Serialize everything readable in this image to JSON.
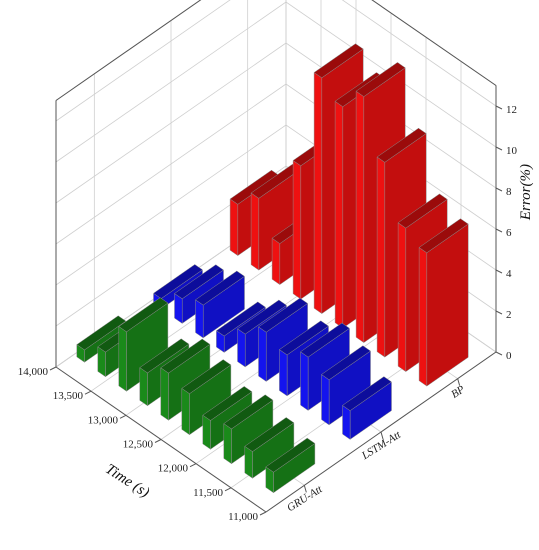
{
  "chart_data": {
    "type": "bar3d",
    "title": "",
    "xlabel": "Time (s)",
    "ylabel": "",
    "zlabel": "Error(%)",
    "time_ticks": [
      "14,000",
      "13,500",
      "13,000",
      "12,500",
      "12,000",
      "11,500",
      "11,000"
    ],
    "time_range": [
      11000,
      14000
    ],
    "error_ticks": [
      "0",
      "2",
      "4",
      "6",
      "8",
      "10",
      "12"
    ],
    "error_range": [
      0,
      13
    ],
    "grid": true,
    "series": [
      {
        "name": "GRU-Att",
        "color": "#1a8a1a",
        "x": [
          11200,
          11500,
          11800,
          12100,
          12400,
          12700,
          13000,
          13300,
          13600,
          13900
        ],
        "values": [
          1.0,
          1.3,
          1.7,
          1.4,
          2.0,
          2.3,
          1.6,
          2.9,
          1.2,
          0.6
        ]
      },
      {
        "name": "LSTM-Att",
        "color": "#1414ee",
        "x": [
          11200,
          11500,
          11800,
          12100,
          12400,
          12700,
          13000,
          13300,
          13600,
          13900
        ],
        "values": [
          1.4,
          2.2,
          2.6,
          2.0,
          2.4,
          1.6,
          0.8,
          1.6,
          1.2,
          0.5
        ]
      },
      {
        "name": "BP",
        "color": "#ee1111",
        "x": [
          11200,
          11500,
          11800,
          12100,
          12400,
          12700,
          13000,
          13300,
          13600,
          13900
        ],
        "values": [
          6.5,
          7.0,
          9.5,
          12.0,
          10.8,
          11.5,
          6.5,
          2.0,
          3.5,
          2.5
        ]
      }
    ]
  }
}
